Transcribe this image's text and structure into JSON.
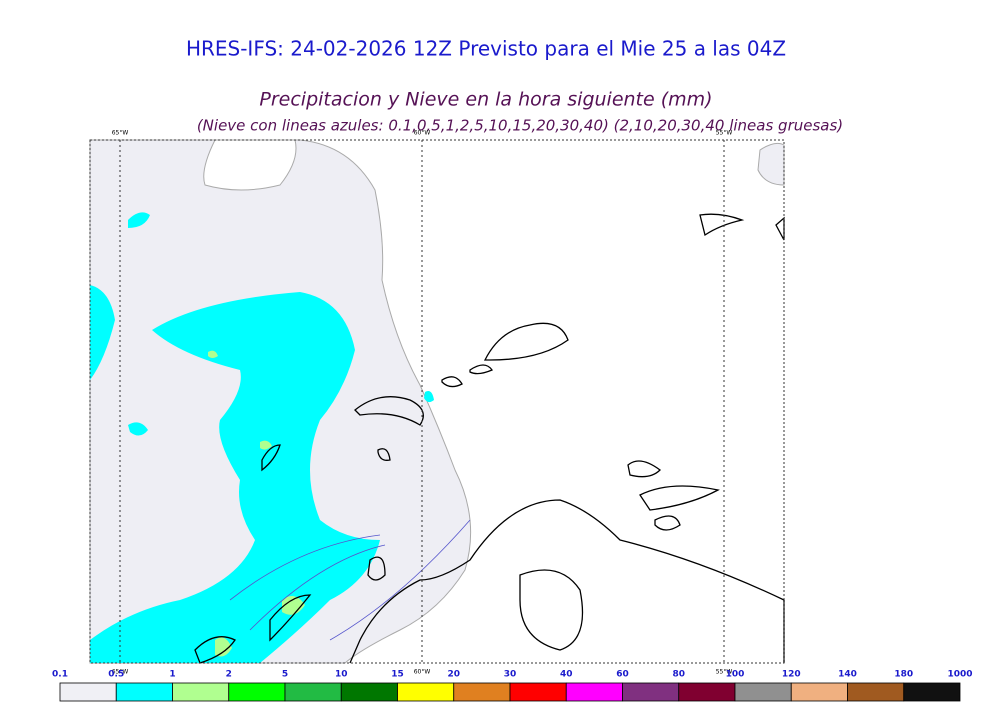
{
  "header": {
    "title": "HRES-IFS: 24-02-2026 12Z Previsto para el Mie 25 a las 04Z",
    "subtitle": "Precipitacion y Nieve en la hora siguiente (mm)",
    "note": "(Nieve con lineas azules: 0.1,0.5,1,2,5,10,15,20,30,40)  (2,10,20,30,40 lineas gruesas)"
  },
  "map": {
    "top_labels": [
      "65°W",
      "60°W",
      "55°W"
    ],
    "bottom_labels": [
      "65°W",
      "60°W",
      "55°W"
    ]
  },
  "legend": {
    "labels": [
      0.1,
      0.5,
      1,
      2,
      5,
      10,
      15,
      20,
      30,
      40,
      60,
      80,
      100,
      120,
      140,
      180,
      1000
    ],
    "colors": [
      "#f0f0f5",
      "#00ffff",
      "#b0ff90",
      "#00ff00",
      "#22bb44",
      "#007700",
      "#ffff00",
      "#e08020",
      "#ff0000",
      "#ff00ff",
      "#803080",
      "#800030",
      "#909090",
      "#f0b080",
      "#a05a20",
      "#111111"
    ]
  }
}
